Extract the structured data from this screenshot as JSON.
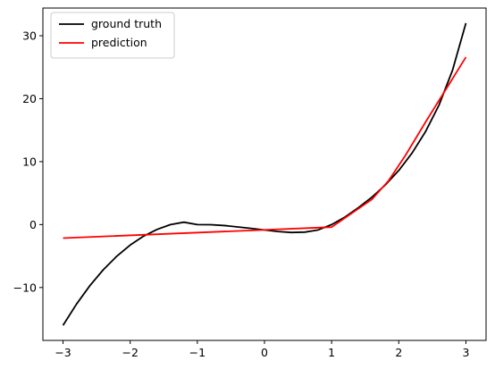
{
  "chart_data": {
    "type": "line",
    "title": "",
    "xlabel": "",
    "ylabel": "",
    "xlim": [
      -3.3,
      3.3
    ],
    "ylim": [
      -18.4,
      34.4
    ],
    "grid": false,
    "legend_position": "top-left",
    "x_ticks": [
      -3,
      -2,
      -1,
      0,
      1,
      2,
      3
    ],
    "y_ticks": [
      -10,
      0,
      10,
      20,
      30
    ],
    "series": [
      {
        "name": "ground truth",
        "color": "#000000",
        "x": [
          -3.0,
          -2.8,
          -2.6,
          -2.4,
          -2.2,
          -2.0,
          -1.8,
          -1.6,
          -1.4,
          -1.2,
          -1.0,
          -0.8,
          -0.6,
          -0.4,
          -0.2,
          0.0,
          0.2,
          0.4,
          0.6,
          0.8,
          1.0,
          1.2,
          1.4,
          1.6,
          1.8,
          2.0,
          2.2,
          2.4,
          2.6,
          2.8,
          3.0
        ],
        "y": [
          -16.0,
          -12.64,
          -9.7,
          -7.17,
          -5.03,
          -3.25,
          -1.83,
          -0.77,
          -0.0,
          0.38,
          0.0,
          -0.02,
          -0.15,
          -0.37,
          -0.6,
          -0.85,
          -1.1,
          -1.25,
          -1.2,
          -0.85,
          0.0,
          1.2,
          2.7,
          4.35,
          6.3,
          8.6,
          11.4,
          14.8,
          19.0,
          24.5,
          32.0
        ]
      },
      {
        "name": "prediction",
        "color": "#ff0000",
        "x": [
          -3.0,
          1.0,
          1.6,
          1.85,
          2.1,
          2.4,
          3.0
        ],
        "y": [
          -2.15,
          -0.4,
          4.0,
          7.0,
          11.0,
          16.3,
          26.6
        ]
      }
    ]
  }
}
